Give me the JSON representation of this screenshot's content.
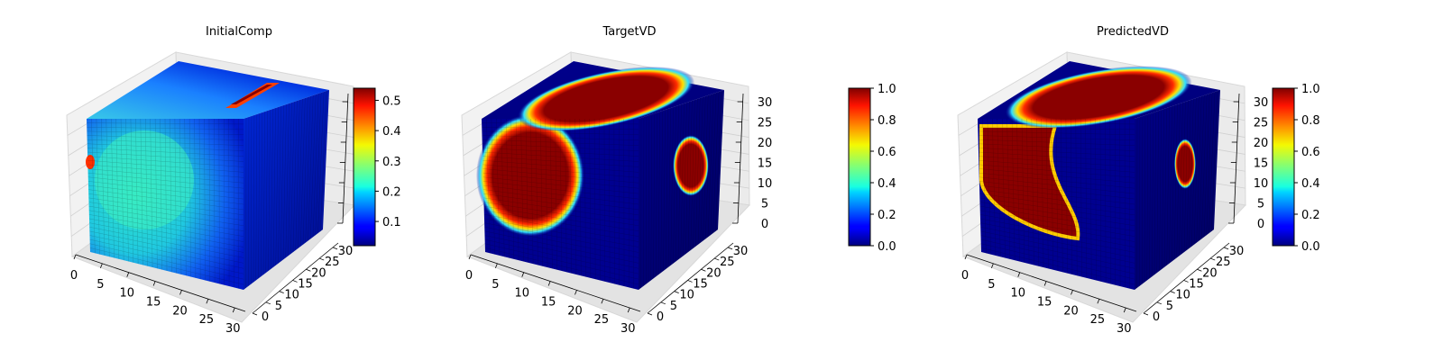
{
  "chart_data": [
    {
      "type": "voxel3d",
      "title": "InitialComp",
      "x_ticks": [
        "0",
        "5",
        "10",
        "15",
        "20",
        "25",
        "30"
      ],
      "y_ticks": [
        "0",
        "5",
        "10",
        "15",
        "20",
        "25",
        "30"
      ],
      "z_ticks": [],
      "grid": true,
      "colormap": "jet",
      "colorbar": {
        "min": 0.02,
        "max": 0.54,
        "ticks": [
          "0.1",
          "0.2",
          "0.3",
          "0.4",
          "0.5"
        ],
        "tick_values": [
          0.1,
          0.2,
          0.3,
          0.4,
          0.5
        ]
      },
      "value_range": [
        0,
        0.54
      ]
    },
    {
      "type": "voxel3d",
      "title": "TargetVD",
      "x_ticks": [
        "0",
        "5",
        "10",
        "15",
        "20",
        "25",
        "30"
      ],
      "y_ticks": [
        "0",
        "5",
        "10",
        "15",
        "20",
        "25",
        "30"
      ],
      "z_ticks": [
        "0",
        "5",
        "10",
        "15",
        "20",
        "25",
        "30"
      ],
      "grid": true,
      "colormap": "jet",
      "colorbar": {
        "min": 0.0,
        "max": 1.0,
        "ticks": [
          "0.0",
          "0.2",
          "0.4",
          "0.6",
          "0.8",
          "1.0"
        ],
        "tick_values": [
          0,
          0.2,
          0.4,
          0.6,
          0.8,
          1.0
        ]
      },
      "value_range": [
        0,
        1
      ]
    },
    {
      "type": "voxel3d",
      "title": "PredictedVD",
      "x_ticks": [
        "0",
        "5",
        "10",
        "15",
        "20",
        "25",
        "30"
      ],
      "y_ticks": [
        "0",
        "5",
        "10",
        "15",
        "20",
        "25",
        "30"
      ],
      "z_ticks": [
        "0",
        "5",
        "10",
        "15",
        "20",
        "25",
        "30"
      ],
      "grid": true,
      "colormap": "jet",
      "colorbar": {
        "min": 0.0,
        "max": 1.0,
        "ticks": [
          "0.0",
          "0.2",
          "0.4",
          "0.6",
          "0.8",
          "1.0"
        ],
        "tick_values": [
          0,
          0.2,
          0.4,
          0.6,
          0.8,
          1.0
        ]
      },
      "value_range": [
        0,
        1
      ]
    }
  ]
}
